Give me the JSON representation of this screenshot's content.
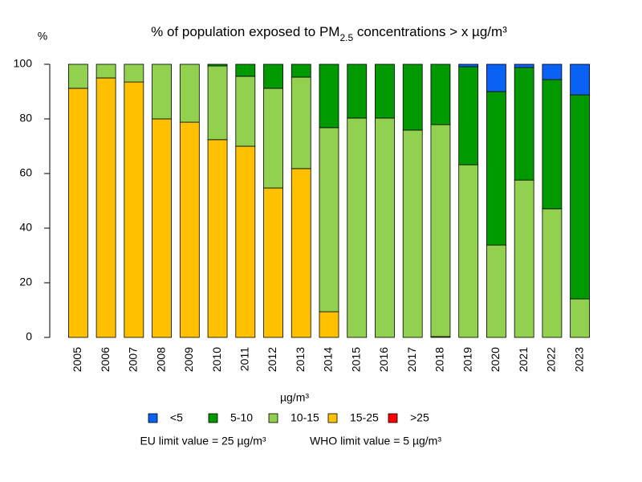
{
  "chart_data": {
    "type": "stacked-bar",
    "title": [
      "% of population exposed to PM",
      "2.5",
      " concentrations > x µg/m³"
    ],
    "y_label": "%",
    "x_label": "µg/m³",
    "notes": [
      "EU limit value = 25 µg/m³",
      "WHO limit value = 5 µg/m³"
    ],
    "categories": [
      "2005",
      "2006",
      "2007",
      "2008",
      "2009",
      "2010",
      "2011",
      "2012",
      "2013",
      "2014",
      "2015",
      "2016",
      "2017",
      "2018",
      "2019",
      "2020",
      "2021",
      "2022",
      "2023"
    ],
    "series": [
      {
        "name": "<5",
        "color": "#0a62f5",
        "values": [
          0,
          0,
          0,
          0,
          0,
          0,
          0,
          0,
          0,
          0,
          0,
          0,
          0,
          0,
          0.9,
          10,
          1.2,
          5.6,
          11.2
        ]
      },
      {
        "name": "5-10",
        "color": "#009a00",
        "values": [
          0,
          0,
          0,
          0,
          0,
          0.6,
          4.4,
          8.8,
          4.7,
          23.2,
          19.7,
          19.7,
          24.1,
          22.1,
          35.9,
          56.2,
          41.2,
          47.3,
          74.7
        ]
      },
      {
        "name": "10-15",
        "color": "#92d050",
        "values": [
          8.8,
          5,
          6.5,
          20,
          21.2,
          27,
          25.6,
          36.5,
          33.5,
          67.4,
          80.3,
          80.3,
          75.9,
          77.6,
          63.2,
          33.8,
          57.6,
          47.1,
          14.1
        ]
      },
      {
        "name": "15-25",
        "color": "#ffc000",
        "values": [
          91.2,
          95,
          93.5,
          80,
          78.8,
          72.4,
          70,
          54.7,
          61.8,
          9.4,
          0,
          0,
          0,
          0.3,
          0,
          0,
          0,
          0,
          0
        ]
      },
      {
        "name": ">25",
        "color": "#ff0000",
        "values": [
          0,
          0,
          0,
          0,
          0,
          0,
          0,
          0,
          0,
          0,
          0,
          0,
          0,
          0,
          0,
          0,
          0,
          0,
          0
        ]
      }
    ],
    "ylim": [
      0,
      100
    ],
    "yticks": [
      0,
      20,
      40,
      60,
      80,
      100
    ]
  }
}
